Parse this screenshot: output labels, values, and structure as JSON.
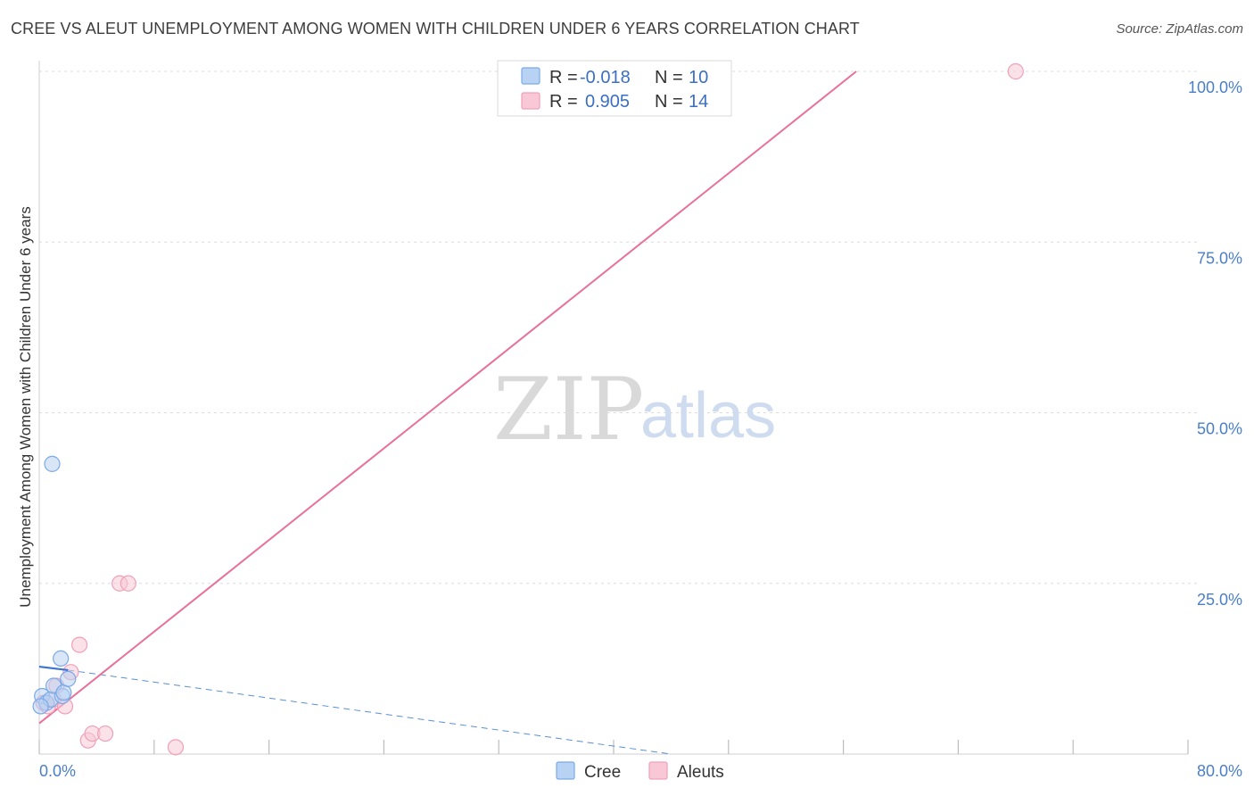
{
  "title": "CREE VS ALEUT UNEMPLOYMENT AMONG WOMEN WITH CHILDREN UNDER 6 YEARS CORRELATION CHART",
  "source": "Source: ZipAtlas.com",
  "watermark": {
    "zip": "ZIP",
    "atlas": "atlas"
  },
  "chart_data": {
    "type": "scatter",
    "title": "CREE VS ALEUT UNEMPLOYMENT AMONG WOMEN WITH CHILDREN UNDER 6 YEARS CORRELATION CHART",
    "xlabel": "",
    "ylabel": "Unemployment Among Women with Children Under 6 years",
    "xlim": [
      0,
      80
    ],
    "ylim": [
      0,
      100
    ],
    "x_tick_labels": [
      "0.0%",
      "80.0%"
    ],
    "y_ticks": [
      25,
      50,
      75,
      100
    ],
    "y_tick_labels": [
      "25.0%",
      "50.0%",
      "75.0%",
      "100.0%"
    ],
    "grid": true,
    "series": [
      {
        "name": "Cree",
        "color": "#7aaae8",
        "fill": "#b8d2f3",
        "r_label": "R =",
        "r_value": "-0.018",
        "n_label": "N =",
        "n_value": "10",
        "points": [
          [
            0.2,
            8.5
          ],
          [
            0.5,
            7.5
          ],
          [
            0.8,
            8.0
          ],
          [
            0.9,
            42.5
          ],
          [
            1.0,
            10.0
          ],
          [
            1.6,
            8.5
          ],
          [
            1.7,
            9.0
          ],
          [
            1.5,
            14.0
          ],
          [
            2.0,
            11.0
          ],
          [
            0.1,
            7.0
          ]
        ],
        "trend_solid": [
          [
            0,
            12.8
          ],
          [
            2.0,
            12.3
          ]
        ],
        "trend_dashed": [
          [
            2.0,
            12.3
          ],
          [
            44.0,
            0.0
          ]
        ]
      },
      {
        "name": "Aleuts",
        "color": "#f0a0b8",
        "fill": "#f8c8d6",
        "r_label": "R =",
        "r_value": "0.905",
        "n_label": "N =",
        "n_value": "14",
        "points": [
          [
            0.3,
            7.5
          ],
          [
            0.6,
            7.0
          ],
          [
            1.0,
            8.0
          ],
          [
            1.2,
            10.0
          ],
          [
            1.8,
            7.0
          ],
          [
            2.2,
            12.0
          ],
          [
            2.8,
            16.0
          ],
          [
            3.4,
            2.0
          ],
          [
            3.7,
            3.0
          ],
          [
            4.6,
            3.0
          ],
          [
            5.6,
            25.0
          ],
          [
            6.2,
            25.0
          ],
          [
            9.5,
            1.0
          ],
          [
            68.0,
            100.0
          ]
        ],
        "trend_solid": [
          [
            0,
            4.5
          ],
          [
            56.9,
            100.0
          ]
        ]
      }
    ],
    "legend": [
      "Cree",
      "Aleuts"
    ]
  }
}
